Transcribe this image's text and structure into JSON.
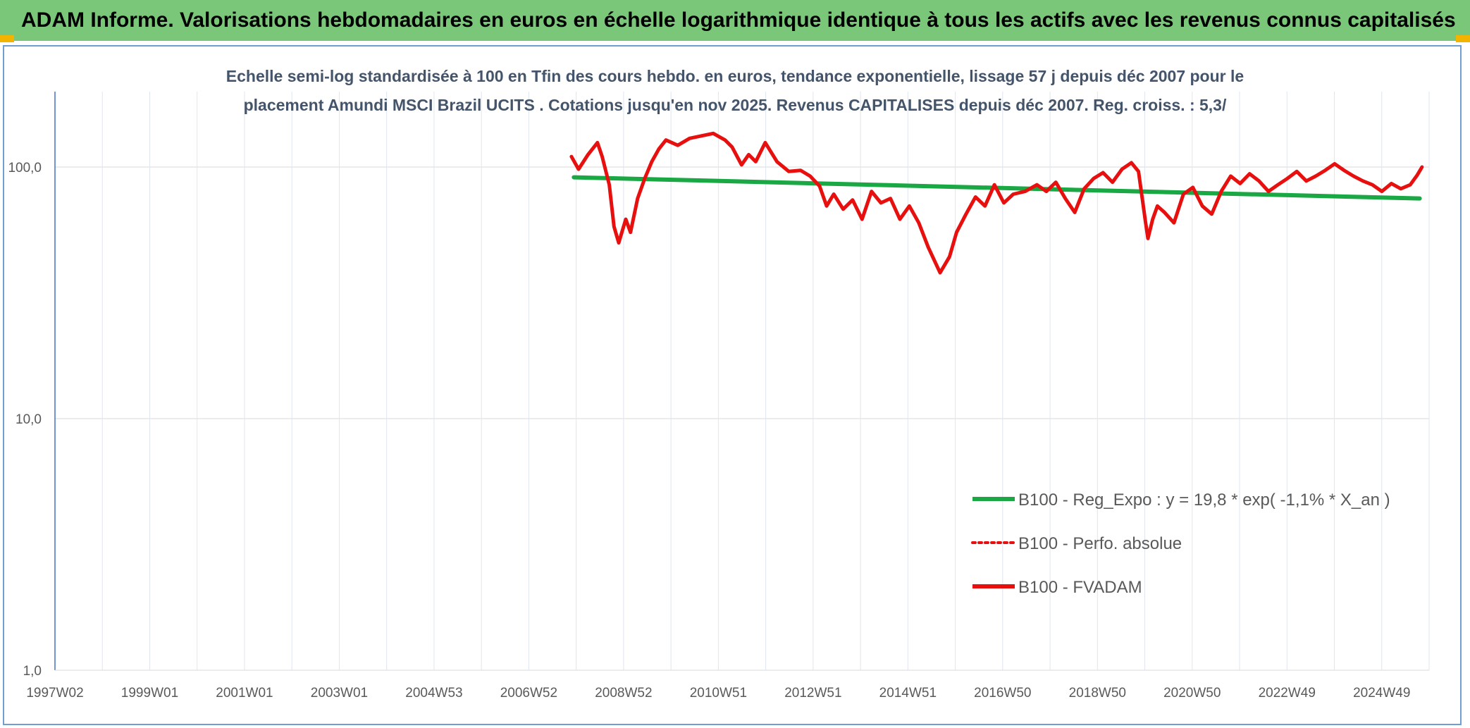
{
  "header": {
    "title": "ADAM Informe. Valorisations hebdomadaires en euros en échelle logarithmique identique à tous les actifs avec les revenus connus capitalisés"
  },
  "colors": {
    "header_bg": "#7ac77a",
    "corner_accent": "#f3b400",
    "frame_border": "#6f9fd1",
    "fvadam_line": "#e8100f",
    "regression_line": "#19a843",
    "title_text": "#44546a"
  },
  "chart_data": {
    "type": "line",
    "title_lines": [
      "Echelle semi-log standardisée à 100 en Tfin des cours hebdo. en euros, tendance exponentielle, lissage 57 j depuis déc 2007 pour le",
      "placement Amundi MSCI Brazil UCITS . Cotations jusqu'en nov 2025. Revenus CAPITALISES depuis déc 2007. Reg. croiss. : 5,3/"
    ],
    "y_scale": "log",
    "ylim": [
      1,
      200
    ],
    "y_ticks": [
      "1,0",
      "10,0",
      "100,0"
    ],
    "x_range_years": [
      1997.02,
      2026.1
    ],
    "x_ticks": [
      "1997W02",
      "1999W01",
      "2001W01",
      "2003W01",
      "2004W53",
      "2006W52",
      "2008W52",
      "2010W51",
      "2012W51",
      "2014W51",
      "2016W50",
      "2018W50",
      "2020W50",
      "2022W49",
      "2024W49"
    ],
    "grid": true,
    "legend_position": "bottom-right",
    "series": [
      {
        "name": "B100 - Reg_Expo : y = 19,8 * exp( -1,1% *  X_an )",
        "style": "solid",
        "x_years": [
          2008.0,
          2025.9
        ],
        "y": [
          91,
          75
        ]
      },
      {
        "name": "B100 - Perfo. absolue",
        "style": "dotted",
        "x_years": [],
        "y": []
      },
      {
        "name": "B100 - FVADAM",
        "style": "solid",
        "x_years": [
          2007.95,
          2008.1,
          2008.3,
          2008.5,
          2008.6,
          2008.75,
          2008.85,
          2008.95,
          2009.1,
          2009.2,
          2009.35,
          2009.5,
          2009.65,
          2009.8,
          2009.95,
          2010.2,
          2010.45,
          2010.7,
          2010.95,
          2011.2,
          2011.35,
          2011.55,
          2011.7,
          2011.85,
          2012.05,
          2012.3,
          2012.55,
          2012.8,
          2013.0,
          2013.2,
          2013.35,
          2013.5,
          2013.7,
          2013.9,
          2014.1,
          2014.3,
          2014.5,
          2014.7,
          2014.9,
          2015.1,
          2015.3,
          2015.5,
          2015.75,
          2015.95,
          2016.1,
          2016.3,
          2016.5,
          2016.7,
          2016.9,
          2017.1,
          2017.3,
          2017.55,
          2017.8,
          2018.0,
          2018.2,
          2018.4,
          2018.6,
          2018.8,
          2019.0,
          2019.2,
          2019.4,
          2019.6,
          2019.8,
          2019.95,
          2020.1,
          2020.15,
          2020.25,
          2020.35,
          2020.5,
          2020.7,
          2020.9,
          2021.1,
          2021.3,
          2021.5,
          2021.7,
          2021.9,
          2022.1,
          2022.3,
          2022.5,
          2022.7,
          2022.9,
          2023.1,
          2023.3,
          2023.5,
          2023.7,
          2023.9,
          2024.1,
          2024.3,
          2024.5,
          2024.7,
          2024.9,
          2025.1,
          2025.3,
          2025.5,
          2025.7,
          2025.85,
          2025.95
        ],
        "y": [
          110,
          98,
          112,
          125,
          110,
          85,
          58,
          50,
          62,
          55,
          75,
          90,
          105,
          118,
          128,
          122,
          130,
          133,
          136,
          128,
          120,
          102,
          112,
          105,
          125,
          105,
          96,
          97,
          92,
          84,
          70,
          78,
          68,
          74,
          62,
          80,
          72,
          75,
          62,
          70,
          60,
          48,
          38,
          44,
          55,
          65,
          76,
          70,
          85,
          72,
          78,
          80,
          85,
          80,
          87,
          75,
          66,
          82,
          90,
          95,
          87,
          98,
          104,
          96,
          60,
          52,
          62,
          70,
          66,
          60,
          78,
          83,
          70,
          65,
          80,
          92,
          86,
          94,
          88,
          80,
          85,
          90,
          96,
          88,
          92,
          97,
          103,
          97,
          92,
          88,
          85,
          80,
          86,
          82,
          85,
          93,
          100
        ]
      }
    ]
  }
}
